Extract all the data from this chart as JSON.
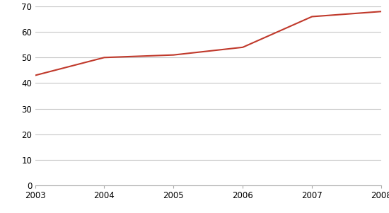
{
  "years": [
    2003,
    2004,
    2005,
    2006,
    2007,
    2008
  ],
  "values": [
    43,
    50,
    51,
    54,
    66,
    68
  ],
  "line_color": "#c0392b",
  "background_color": "#ffffff",
  "grid_color": "#c8c8c8",
  "ylim": [
    0,
    70
  ],
  "yticks": [
    0,
    10,
    20,
    30,
    40,
    50,
    60,
    70
  ],
  "xlim_min": 2003,
  "xlim_max": 2008,
  "xticks": [
    2003,
    2004,
    2005,
    2006,
    2007,
    2008
  ],
  "tick_fontsize": 8.5,
  "line_width": 1.5
}
